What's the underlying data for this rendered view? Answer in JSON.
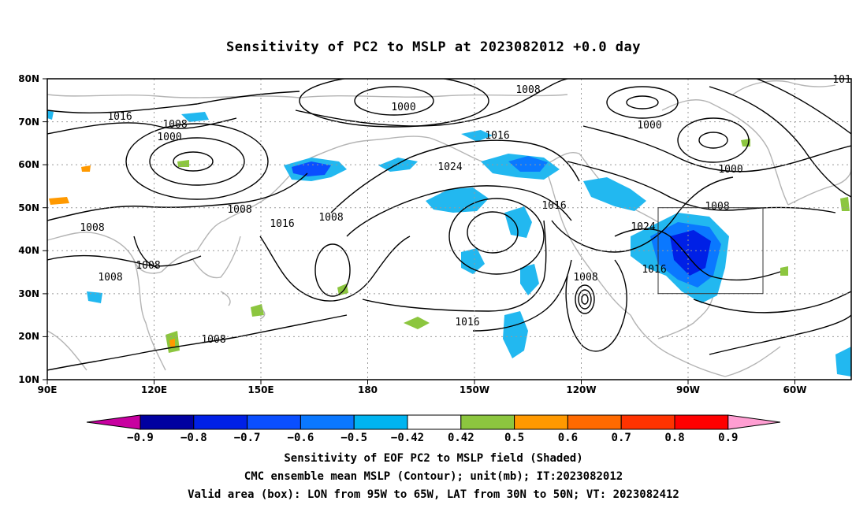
{
  "title": "Sensitivity of PC2 to MSLP at 2023082012 +0.0 day",
  "map": {
    "lat_labels": [
      "80N",
      "70N",
      "60N",
      "50N",
      "40N",
      "30N",
      "20N",
      "10N"
    ],
    "lon_labels": [
      "90E",
      "120E",
      "150E",
      "180",
      "150W",
      "120W",
      "90W",
      "60W"
    ],
    "valid_box": {
      "lon_min": -95,
      "lon_max": -65,
      "lat_min": 30,
      "lat_max": 50
    },
    "contour_labels": [
      "1016",
      "1008",
      "1000",
      "1008",
      "1008",
      "1016",
      "1008",
      "1008",
      "1008",
      "1008",
      "1000",
      "1008",
      "1016",
      "1024",
      "1016",
      "1024",
      "1016",
      "1008",
      "1016",
      "1000",
      "1000",
      "1008",
      "101"
    ],
    "colors": {
      "negative": "#0a78ff",
      "strong_negative": "#0033dd",
      "weak_negative": "#22b8f0",
      "positive": "#8cc63f",
      "strong_positive": "#ff8800",
      "land": "#b4b4b4",
      "contour": "#000000"
    }
  },
  "colorbar": {
    "labels": [
      "−0.9",
      "−0.8",
      "−0.7",
      "−0.6",
      "−0.5",
      "−0.42",
      "0.42",
      "0.5",
      "0.6",
      "0.7",
      "0.8",
      "0.9"
    ],
    "colors": [
      "#c800a0",
      "#0000a0",
      "#0020e6",
      "#0a4fff",
      "#0a78ff",
      "#00b4f0",
      "#ffffff",
      "#8cc63f",
      "#ff9900",
      "#ff6a00",
      "#ff3300",
      "#ff0000",
      "#ff9ed2"
    ]
  },
  "captions": [
    "Sensitivity of EOF PC2 to MSLP field (Shaded)",
    "CMC ensemble mean MSLP (Contour); unit(mb); IT:2023082012",
    "Valid area (box): LON from 95W to 65W, LAT from 30N to 50N; VT: 2023082412"
  ]
}
